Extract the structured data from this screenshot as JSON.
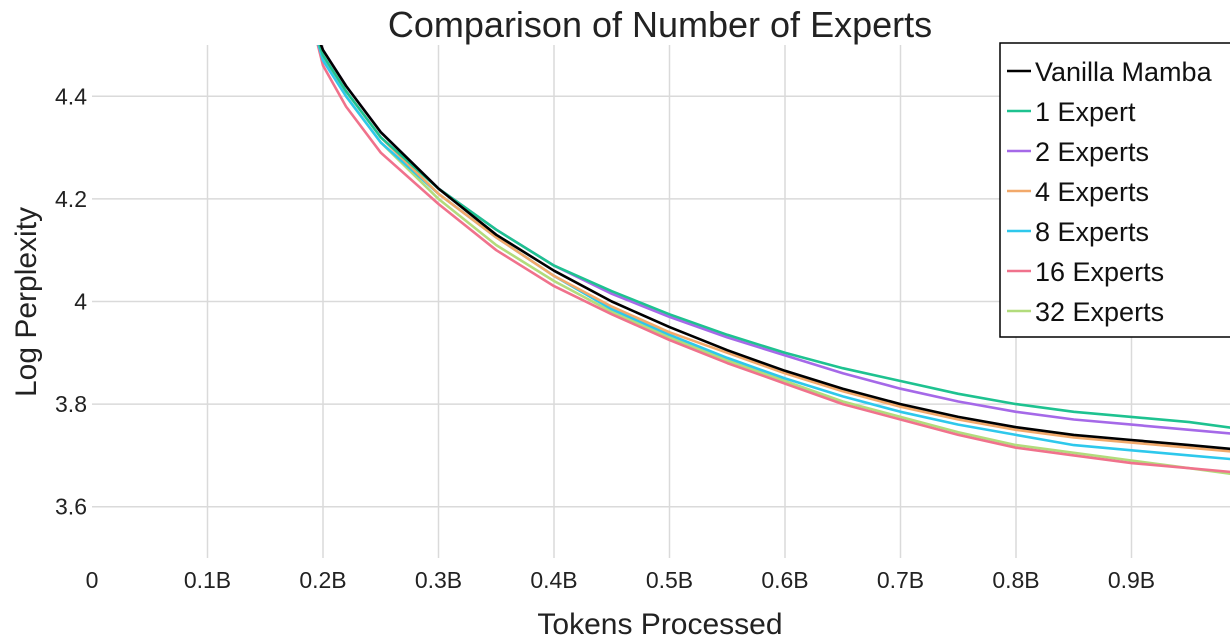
{
  "chart_data": {
    "type": "line",
    "title": "Comparison of Number of Experts",
    "xlabel": "Tokens Processed",
    "ylabel": "Log Perplexity",
    "xlim": [
      0,
      1.0
    ],
    "ylim": [
      3.5,
      4.5
    ],
    "x_ticks": [
      0,
      0.1,
      0.2,
      0.3,
      0.4,
      0.5,
      0.6,
      0.7,
      0.8,
      0.9
    ],
    "x_tick_labels": [
      "0",
      "0.1B",
      "0.2B",
      "0.3B",
      "0.4B",
      "0.5B",
      "0.6B",
      "0.7B",
      "0.8B",
      "0.9B"
    ],
    "y_ticks": [
      3.6,
      3.8,
      4.0,
      4.2,
      4.4
    ],
    "y_tick_labels": [
      "3.6",
      "3.8",
      "4",
      "4.2",
      "4.4"
    ],
    "grid": true,
    "legend_position": "top-right",
    "x": [
      0.19,
      0.2,
      0.22,
      0.25,
      0.3,
      0.35,
      0.4,
      0.45,
      0.5,
      0.55,
      0.6,
      0.65,
      0.7,
      0.75,
      0.8,
      0.85,
      0.9,
      0.95,
      1.0
    ],
    "series": [
      {
        "name": "Vanilla Mamba",
        "color": "#000000",
        "values": [
          4.55,
          4.49,
          4.42,
          4.33,
          4.22,
          4.13,
          4.06,
          4.0,
          3.95,
          3.905,
          3.865,
          3.83,
          3.8,
          3.775,
          3.755,
          3.74,
          3.73,
          3.72,
          3.71
        ]
      },
      {
        "name": "1 Expert",
        "color": "#1ec290",
        "values": [
          4.55,
          4.48,
          4.41,
          4.32,
          4.22,
          4.14,
          4.07,
          4.02,
          3.975,
          3.935,
          3.9,
          3.87,
          3.845,
          3.82,
          3.8,
          3.785,
          3.775,
          3.765,
          3.75
        ]
      },
      {
        "name": "2 Experts",
        "color": "#a569e8",
        "values": [
          4.55,
          4.49,
          4.42,
          4.33,
          4.22,
          4.14,
          4.07,
          4.015,
          3.97,
          3.93,
          3.895,
          3.86,
          3.83,
          3.805,
          3.785,
          3.77,
          3.76,
          3.75,
          3.74
        ]
      },
      {
        "name": "4 Experts",
        "color": "#f2a96a",
        "values": [
          4.55,
          4.48,
          4.41,
          4.32,
          4.21,
          4.125,
          4.05,
          3.99,
          3.94,
          3.9,
          3.86,
          3.825,
          3.795,
          3.77,
          3.75,
          3.735,
          3.725,
          3.715,
          3.705
        ]
      },
      {
        "name": "8 Experts",
        "color": "#2ec8ec",
        "values": [
          4.55,
          4.47,
          4.4,
          4.31,
          4.21,
          4.125,
          4.05,
          3.985,
          3.935,
          3.89,
          3.85,
          3.815,
          3.785,
          3.76,
          3.74,
          3.72,
          3.71,
          3.7,
          3.69
        ]
      },
      {
        "name": "16 Experts",
        "color": "#f0728c",
        "values": [
          4.55,
          4.46,
          4.38,
          4.29,
          4.19,
          4.1,
          4.03,
          3.975,
          3.925,
          3.88,
          3.84,
          3.8,
          3.77,
          3.74,
          3.715,
          3.7,
          3.685,
          3.675,
          3.665
        ]
      },
      {
        "name": "32 Experts",
        "color": "#b2dc7c",
        "values": [
          4.55,
          4.48,
          4.4,
          4.31,
          4.2,
          4.11,
          4.04,
          3.98,
          3.93,
          3.885,
          3.845,
          3.805,
          3.775,
          3.745,
          3.72,
          3.705,
          3.69,
          3.675,
          3.66
        ]
      }
    ]
  }
}
